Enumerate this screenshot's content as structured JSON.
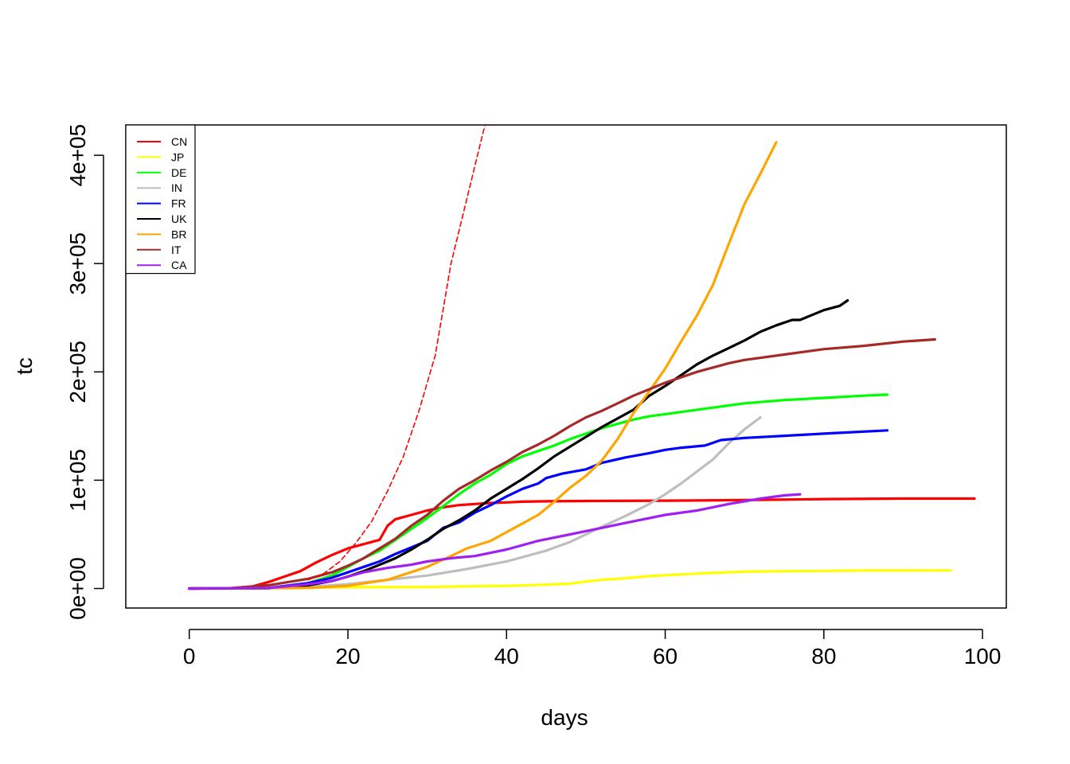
{
  "chart_data": {
    "type": "line",
    "title": "",
    "xlabel": "days",
    "ylabel": "tc",
    "xlim": [
      -8,
      103
    ],
    "ylim": [
      -18000,
      428000
    ],
    "x_ticks": [
      0,
      20,
      40,
      60,
      80,
      100
    ],
    "x_tick_labels": [
      "0",
      "20",
      "40",
      "60",
      "80",
      "100"
    ],
    "y_ticks": [
      0,
      100000,
      200000,
      300000,
      400000
    ],
    "y_tick_labels": [
      "0e+00",
      "1e+05",
      "2e+05",
      "3e+05",
      "4e+05"
    ],
    "legend_position": "top-left",
    "series": [
      {
        "name": "CN",
        "color": "#ff0000",
        "points": [
          [
            0,
            0
          ],
          [
            5,
            200
          ],
          [
            8,
            2000
          ],
          [
            10,
            6000
          ],
          [
            12,
            11000
          ],
          [
            14,
            16000
          ],
          [
            16,
            24000
          ],
          [
            18,
            31000
          ],
          [
            20,
            37000
          ],
          [
            22,
            41000
          ],
          [
            24,
            45000
          ],
          [
            25,
            58000
          ],
          [
            26,
            64000
          ],
          [
            28,
            68000
          ],
          [
            30,
            72000
          ],
          [
            32,
            75000
          ],
          [
            34,
            77000
          ],
          [
            36,
            78000
          ],
          [
            38,
            79000
          ],
          [
            40,
            79500
          ],
          [
            42,
            80200
          ],
          [
            45,
            80500
          ],
          [
            50,
            80800
          ],
          [
            60,
            81100
          ],
          [
            70,
            81600
          ],
          [
            80,
            82600
          ],
          [
            90,
            83000
          ],
          [
            99,
            83000
          ]
        ]
      },
      {
        "name": "JP",
        "color": "#ffff00",
        "points": [
          [
            0,
            0
          ],
          [
            20,
            1200
          ],
          [
            30,
            1500
          ],
          [
            40,
            2500
          ],
          [
            45,
            3500
          ],
          [
            48,
            4500
          ],
          [
            50,
            6500
          ],
          [
            52,
            8000
          ],
          [
            55,
            9500
          ],
          [
            58,
            11500
          ],
          [
            62,
            13000
          ],
          [
            66,
            14500
          ],
          [
            70,
            15500
          ],
          [
            75,
            16000
          ],
          [
            80,
            16300
          ],
          [
            85,
            16600
          ],
          [
            96,
            16700
          ]
        ]
      },
      {
        "name": "DE",
        "color": "#00ff00",
        "points": [
          [
            0,
            0
          ],
          [
            10,
            500
          ],
          [
            15,
            5000
          ],
          [
            18,
            12000
          ],
          [
            20,
            20000
          ],
          [
            22,
            28000
          ],
          [
            24,
            35000
          ],
          [
            26,
            45000
          ],
          [
            28,
            55000
          ],
          [
            30,
            65000
          ],
          [
            32,
            76000
          ],
          [
            34,
            87000
          ],
          [
            36,
            97000
          ],
          [
            38,
            105000
          ],
          [
            40,
            115000
          ],
          [
            42,
            122000
          ],
          [
            44,
            127000
          ],
          [
            46,
            132000
          ],
          [
            48,
            138000
          ],
          [
            50,
            143000
          ],
          [
            52,
            148000
          ],
          [
            54,
            152000
          ],
          [
            56,
            156000
          ],
          [
            58,
            159000
          ],
          [
            60,
            161000
          ],
          [
            62,
            163000
          ],
          [
            64,
            165000
          ],
          [
            66,
            167000
          ],
          [
            68,
            169000
          ],
          [
            70,
            171000
          ],
          [
            75,
            174000
          ],
          [
            80,
            176000
          ],
          [
            85,
            178000
          ],
          [
            88,
            179000
          ]
        ]
      },
      {
        "name": "IN",
        "color": "#bebebe",
        "points": [
          [
            0,
            0
          ],
          [
            10,
            300
          ],
          [
            15,
            1500
          ],
          [
            20,
            4000
          ],
          [
            25,
            8000
          ],
          [
            30,
            12000
          ],
          [
            35,
            18000
          ],
          [
            40,
            25000
          ],
          [
            45,
            35000
          ],
          [
            48,
            43000
          ],
          [
            50,
            50000
          ],
          [
            52,
            57000
          ],
          [
            55,
            67000
          ],
          [
            58,
            78000
          ],
          [
            60,
            87000
          ],
          [
            62,
            97000
          ],
          [
            64,
            108000
          ],
          [
            66,
            119000
          ],
          [
            68,
            134000
          ],
          [
            70,
            147000
          ],
          [
            72,
            158000
          ]
        ]
      },
      {
        "name": "FR",
        "color": "#0000ff",
        "points": [
          [
            0,
            0
          ],
          [
            10,
            500
          ],
          [
            15,
            5000
          ],
          [
            18,
            10000
          ],
          [
            20,
            15000
          ],
          [
            22,
            20000
          ],
          [
            24,
            25000
          ],
          [
            26,
            32000
          ],
          [
            28,
            38000
          ],
          [
            30,
            44000
          ],
          [
            31,
            50000
          ],
          [
            32,
            56000
          ],
          [
            34,
            61000
          ],
          [
            36,
            70000
          ],
          [
            38,
            77000
          ],
          [
            40,
            85000
          ],
          [
            42,
            92000
          ],
          [
            44,
            97000
          ],
          [
            45,
            102000
          ],
          [
            47,
            106000
          ],
          [
            50,
            110000
          ],
          [
            52,
            116000
          ],
          [
            55,
            121000
          ],
          [
            58,
            125000
          ],
          [
            60,
            128000
          ],
          [
            62,
            130000
          ],
          [
            65,
            132000
          ],
          [
            67,
            137000
          ],
          [
            70,
            139000
          ],
          [
            75,
            141000
          ],
          [
            80,
            143000
          ],
          [
            88,
            146000
          ]
        ]
      },
      {
        "name": "UK",
        "color": "#000000",
        "points": [
          [
            0,
            0
          ],
          [
            10,
            300
          ],
          [
            15,
            3000
          ],
          [
            18,
            7000
          ],
          [
            20,
            11000
          ],
          [
            22,
            16000
          ],
          [
            24,
            22000
          ],
          [
            26,
            28000
          ],
          [
            28,
            36000
          ],
          [
            30,
            45000
          ],
          [
            32,
            55000
          ],
          [
            34,
            63000
          ],
          [
            36,
            72000
          ],
          [
            38,
            83000
          ],
          [
            40,
            92000
          ],
          [
            42,
            101000
          ],
          [
            44,
            111000
          ],
          [
            46,
            122000
          ],
          [
            48,
            131000
          ],
          [
            50,
            140000
          ],
          [
            52,
            149000
          ],
          [
            54,
            157000
          ],
          [
            56,
            165000
          ],
          [
            58,
            178000
          ],
          [
            60,
            187000
          ],
          [
            62,
            197000
          ],
          [
            64,
            207000
          ],
          [
            66,
            215000
          ],
          [
            68,
            222000
          ],
          [
            70,
            229000
          ],
          [
            72,
            237000
          ],
          [
            74,
            243000
          ],
          [
            76,
            248000
          ],
          [
            77,
            248000
          ],
          [
            80,
            257000
          ],
          [
            82,
            261000
          ],
          [
            83,
            266000
          ]
        ]
      },
      {
        "name": "BR",
        "color": "#ffa500",
        "points": [
          [
            0,
            0
          ],
          [
            15,
            500
          ],
          [
            20,
            2500
          ],
          [
            25,
            8000
          ],
          [
            30,
            20000
          ],
          [
            33,
            30000
          ],
          [
            35,
            37000
          ],
          [
            38,
            44000
          ],
          [
            40,
            52000
          ],
          [
            42,
            60000
          ],
          [
            44,
            68000
          ],
          [
            46,
            80000
          ],
          [
            48,
            93000
          ],
          [
            50,
            104000
          ],
          [
            52,
            118000
          ],
          [
            54,
            138000
          ],
          [
            56,
            162000
          ],
          [
            58,
            182000
          ],
          [
            60,
            203000
          ],
          [
            62,
            228000
          ],
          [
            64,
            252000
          ],
          [
            66,
            280000
          ],
          [
            68,
            318000
          ],
          [
            70,
            355000
          ],
          [
            72,
            383000
          ],
          [
            74,
            412000
          ]
        ]
      },
      {
        "name": "IT",
        "color": "#a52a2a",
        "points": [
          [
            0,
            0
          ],
          [
            5,
            100
          ],
          [
            10,
            3000
          ],
          [
            15,
            9000
          ],
          [
            18,
            15000
          ],
          [
            20,
            21000
          ],
          [
            22,
            28000
          ],
          [
            24,
            37000
          ],
          [
            26,
            46000
          ],
          [
            28,
            58000
          ],
          [
            30,
            68000
          ],
          [
            32,
            81000
          ],
          [
            34,
            92000
          ],
          [
            36,
            100000
          ],
          [
            38,
            109000
          ],
          [
            40,
            117000
          ],
          [
            42,
            126000
          ],
          [
            44,
            133000
          ],
          [
            46,
            141000
          ],
          [
            48,
            150000
          ],
          [
            50,
            158000
          ],
          [
            52,
            164000
          ],
          [
            54,
            171000
          ],
          [
            56,
            178000
          ],
          [
            58,
            184000
          ],
          [
            60,
            190000
          ],
          [
            62,
            195000
          ],
          [
            64,
            200000
          ],
          [
            66,
            204000
          ],
          [
            68,
            208000
          ],
          [
            70,
            211000
          ],
          [
            75,
            216000
          ],
          [
            80,
            221000
          ],
          [
            85,
            224000
          ],
          [
            90,
            228000
          ],
          [
            94,
            230000
          ]
        ]
      },
      {
        "name": "CA",
        "color": "#a020f0",
        "points": [
          [
            0,
            0
          ],
          [
            10,
            500
          ],
          [
            15,
            4000
          ],
          [
            18,
            7000
          ],
          [
            20,
            11000
          ],
          [
            22,
            15000
          ],
          [
            25,
            19000
          ],
          [
            28,
            22000
          ],
          [
            30,
            25000
          ],
          [
            33,
            28000
          ],
          [
            36,
            30000
          ],
          [
            40,
            36000
          ],
          [
            44,
            44000
          ],
          [
            48,
            50000
          ],
          [
            52,
            56000
          ],
          [
            56,
            62000
          ],
          [
            60,
            68000
          ],
          [
            64,
            72000
          ],
          [
            68,
            78000
          ],
          [
            72,
            83000
          ],
          [
            75,
            86000
          ],
          [
            77,
            87000
          ]
        ]
      },
      {
        "name": "",
        "color": "#ff0000",
        "dashed": true,
        "points": [
          [
            15,
            8000
          ],
          [
            17,
            14000
          ],
          [
            19,
            25000
          ],
          [
            21,
            42000
          ],
          [
            23,
            62000
          ],
          [
            25,
            90000
          ],
          [
            27,
            122000
          ],
          [
            29,
            165000
          ],
          [
            31,
            215000
          ],
          [
            33,
            300000
          ],
          [
            35,
            360000
          ],
          [
            37,
            420000
          ],
          [
            38.5,
            460000
          ]
        ]
      }
    ]
  }
}
